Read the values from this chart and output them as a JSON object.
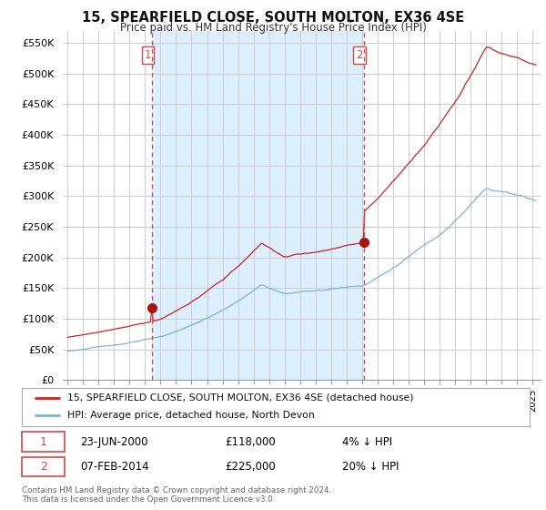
{
  "title": "15, SPEARFIELD CLOSE, SOUTH MOLTON, EX36 4SE",
  "subtitle": "Price paid vs. HM Land Registry's House Price Index (HPI)",
  "legend_line1": "15, SPEARFIELD CLOSE, SOUTH MOLTON, EX36 4SE (detached house)",
  "legend_line2": "HPI: Average price, detached house, North Devon",
  "footnote": "Contains HM Land Registry data © Crown copyright and database right 2024.\nThis data is licensed under the Open Government Licence v3.0.",
  "transaction1_date": "23-JUN-2000",
  "transaction1_price": "£118,000",
  "transaction1_pct": "4% ↓ HPI",
  "transaction2_date": "07-FEB-2014",
  "transaction2_price": "£225,000",
  "transaction2_pct": "20% ↓ HPI",
  "hpi_color": "#7ab4d8",
  "price_color": "#cc2222",
  "marker_color": "#aa1111",
  "vline_color": "#dd4444",
  "shade_color": "#ddeeff",
  "background_color": "#ffffff",
  "grid_color": "#cccccc",
  "ylim": [
    0,
    570000
  ],
  "yticks": [
    0,
    50000,
    100000,
    150000,
    200000,
    250000,
    300000,
    350000,
    400000,
    450000,
    500000,
    550000
  ],
  "ytick_labels": [
    "£0",
    "£50K",
    "£100K",
    "£150K",
    "£200K",
    "£250K",
    "£300K",
    "£350K",
    "£400K",
    "£450K",
    "£500K",
    "£550K"
  ],
  "t1_year": 2000.46,
  "t1_price": 118000,
  "t2_year": 2014.1,
  "t2_price": 225000,
  "start_year": 1995.0,
  "end_year": 2025.2
}
